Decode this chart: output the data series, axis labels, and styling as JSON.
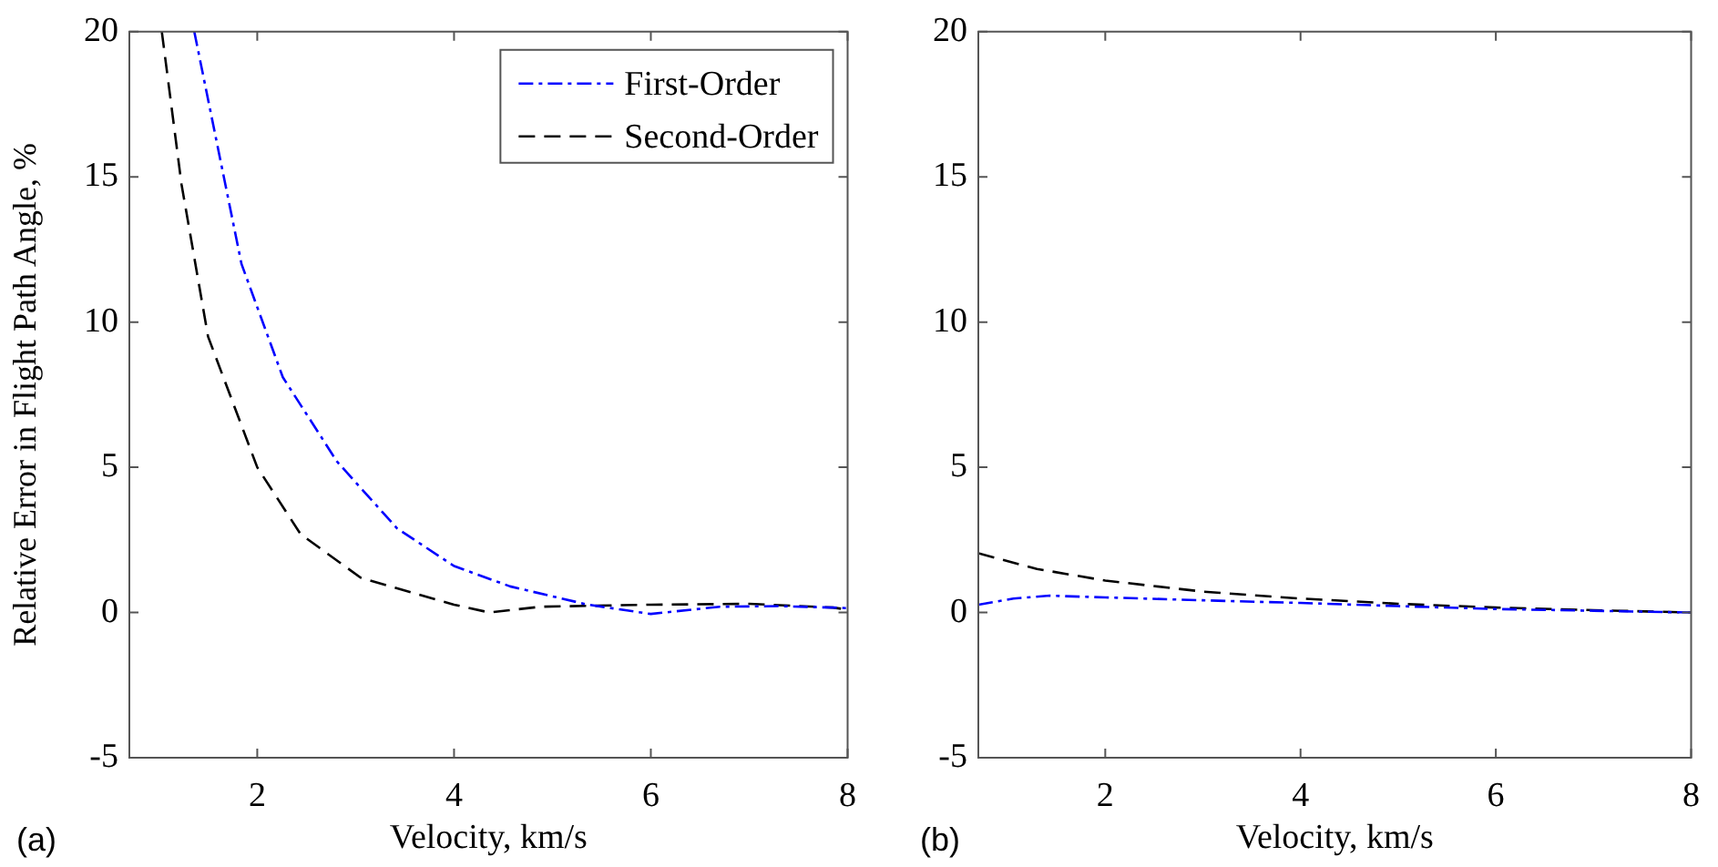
{
  "chart_data": [
    {
      "type": "line",
      "xlabel": "Velocity, km/s",
      "ylabel": "Relative Error in Flight Path Angle, %",
      "xlim": [
        0.7,
        8
      ],
      "xticks": [
        2,
        4,
        6,
        8
      ],
      "ylim": [
        -5,
        20
      ],
      "yticks": [
        -5,
        0,
        5,
        10,
        15,
        20
      ],
      "legend": "top right",
      "annotations": [
        "(a)"
      ],
      "series": [
        {
          "name": "First-Order",
          "color": "#0000ff",
          "line_style": "dashdot",
          "x": [
            1.36,
            1.84,
            2.26,
            2.81,
            3.42,
            4.0,
            4.57,
            5.36,
            6.0,
            6.7,
            7.3,
            7.85,
            8.0
          ],
          "values": [
            20,
            12.0,
            8.1,
            5.2,
            2.9,
            1.6,
            0.9,
            0.27,
            -0.05,
            0.2,
            0.22,
            0.17,
            0.15
          ]
        },
        {
          "name": "Second-Order",
          "color": "#000000",
          "line_style": "dashed",
          "x": [
            1.03,
            1.23,
            1.5,
            2.0,
            2.44,
            3.05,
            4.0,
            4.36,
            4.88,
            6.0,
            7.0,
            7.85,
            8.0
          ],
          "values": [
            20,
            14.75,
            9.5,
            5.0,
            2.7,
            1.2,
            0.27,
            0,
            0.2,
            0.27,
            0.3,
            0.17,
            0.1
          ]
        }
      ]
    },
    {
      "type": "line",
      "xlabel": "Velocity, km/s",
      "xlim": [
        0.7,
        8
      ],
      "xticks": [
        2,
        4,
        6,
        8
      ],
      "ylim": [
        -5,
        20
      ],
      "yticks": [
        -5,
        0,
        5,
        10,
        15,
        20
      ],
      "annotations": [
        "(b)"
      ],
      "series": [
        {
          "color": "#0000ff",
          "line_style": "dashdot",
          "x": [
            0.7,
            1.06,
            1.43,
            2.0,
            3.0,
            4.0,
            5.0,
            6.0,
            7.0,
            8.0
          ],
          "values": [
            0.27,
            0.48,
            0.58,
            0.52,
            0.42,
            0.33,
            0.22,
            0.12,
            0.06,
            0
          ]
        },
        {
          "color": "#000000",
          "line_style": "dashed",
          "x": [
            0.7,
            1.3,
            2.0,
            3.0,
            4.0,
            5.0,
            6.0,
            7.0,
            8.0
          ],
          "values": [
            2.04,
            1.5,
            1.1,
            0.72,
            0.48,
            0.3,
            0.17,
            0.08,
            0
          ]
        }
      ]
    }
  ]
}
